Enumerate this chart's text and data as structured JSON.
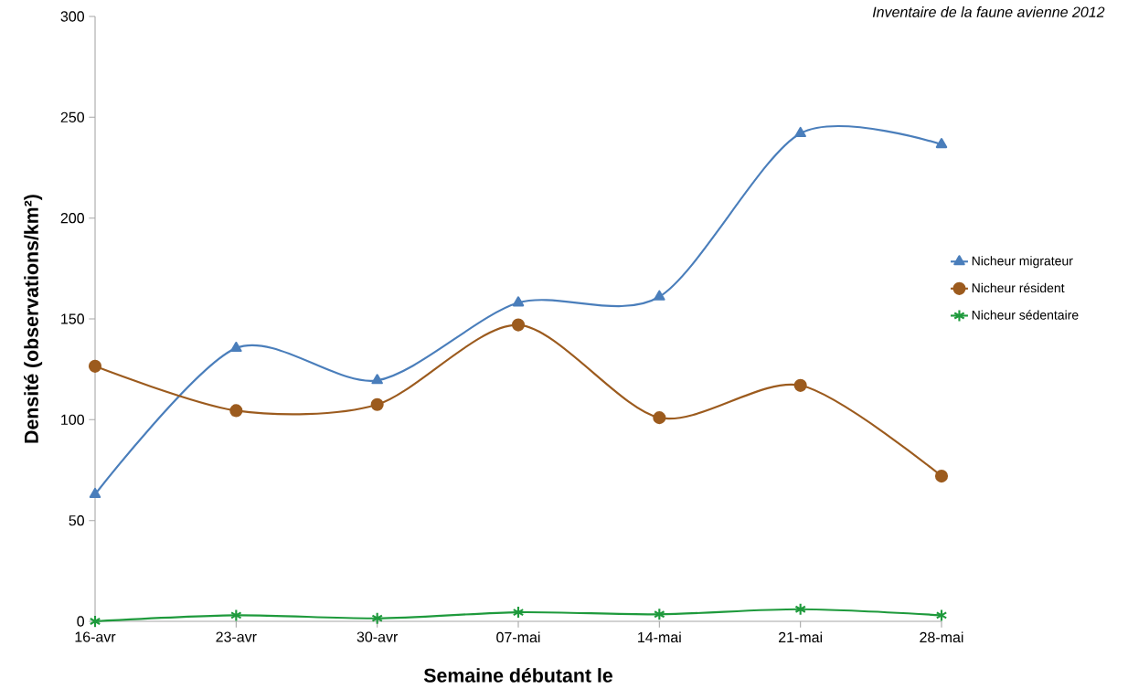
{
  "chart_data": {
    "type": "line",
    "annotations": [
      "Inventaire de la faune avienne 2012"
    ],
    "xlabel": "Semaine débutant le",
    "ylabel": "Densité (observations/km²)",
    "categories": [
      "16-avr",
      "23-avr",
      "30-avr",
      "07-mai",
      "14-mai",
      "21-mai",
      "28-mai"
    ],
    "series": [
      {
        "name": "Nicheur migrateur",
        "color": "#4a7ebb",
        "marker": "triangle",
        "values": [
          63,
          135.5,
          119.5,
          158,
          161,
          242,
          236.5
        ]
      },
      {
        "name": "Nicheur résident",
        "color": "#9c5b1e",
        "marker": "circle",
        "values": [
          126.5,
          104.5,
          107.5,
          147,
          101,
          117,
          72
        ]
      },
      {
        "name": "Nicheur sédentaire",
        "color": "#1e9a3c",
        "marker": "cross",
        "values": [
          0,
          3,
          1.5,
          4.5,
          3.5,
          6,
          3
        ]
      }
    ],
    "ylim": [
      0,
      300
    ],
    "yticks": [
      0,
      50,
      100,
      150,
      200,
      250,
      300
    ],
    "grid": false,
    "legend": "right",
    "line_style": "solid"
  }
}
